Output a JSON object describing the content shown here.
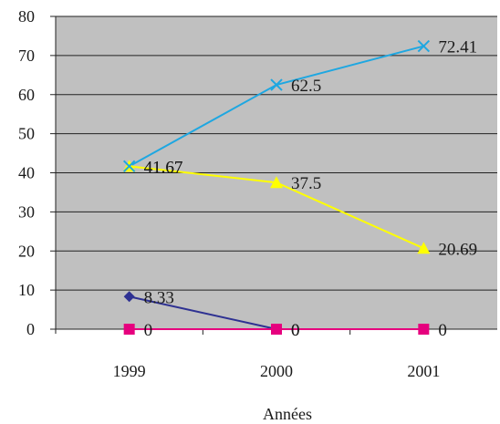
{
  "chart_data": {
    "type": "line",
    "title": "",
    "xlabel": "Années",
    "ylabel": "",
    "categories": [
      "1999",
      "2000",
      "2001"
    ],
    "ylim": [
      0,
      80
    ],
    "yticks": [
      0,
      10,
      20,
      30,
      40,
      50,
      60,
      70,
      80
    ],
    "grid": true,
    "legend": "none",
    "plot_background": "#c0c0c0",
    "series": [
      {
        "values": [
          41.67,
          62.5,
          72.41
        ],
        "labels": [
          "41.67",
          "62.5",
          "72.41"
        ],
        "color": "#1ea7e1",
        "marker": "x"
      },
      {
        "values": [
          41.67,
          37.5,
          20.69
        ],
        "labels": [
          "41.67",
          "37.5",
          "20.69"
        ],
        "color": "#ffff00",
        "marker": "triangle"
      },
      {
        "values": [
          8.33,
          0,
          null
        ],
        "labels": [
          "8.33",
          "0",
          null
        ],
        "color": "#2e3192",
        "marker": "diamond"
      },
      {
        "values": [
          0,
          0,
          0
        ],
        "labels": [
          "0",
          "0",
          "0"
        ],
        "color": "#e6007e",
        "marker": "square"
      }
    ]
  }
}
